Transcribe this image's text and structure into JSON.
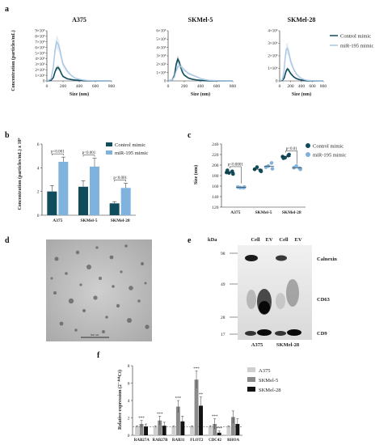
{
  "panel_letters": {
    "a": "a",
    "b": "b",
    "c": "c",
    "d": "d",
    "e": "e",
    "f": "f"
  },
  "colors": {
    "control": "#0f4c5c",
    "mir": "#7fb2dc",
    "mir_light": "#aac6e4",
    "f_a375": "#cfcfcf",
    "f_skmel5": "#8a8a8a",
    "f_skmel28": "#111111"
  },
  "panel_a": {
    "ylabel": "Concentration (particles/mL)",
    "xlabel": "Size (nm)",
    "legend": [
      "Control mimic",
      "miR-195 mimic"
    ],
    "plots": [
      {
        "title": "A375",
        "yticks": [
          "0",
          "1×10⁶",
          "2×10⁶",
          "3×10⁶",
          "4×10⁶",
          "5×10⁶",
          "6×10⁶",
          "7×10⁶",
          "8×10⁶",
          "9×10⁶"
        ]
      },
      {
        "title": "SKMel-5",
        "yticks": [
          "0",
          "1×10⁶",
          "2×10⁶",
          "3×10⁶",
          "4×10⁶",
          "5×10⁶",
          "6×10⁶"
        ]
      },
      {
        "title": "SKMel-28",
        "yticks": [
          "0",
          "1×10⁶",
          "2×10⁶",
          "3×10⁶",
          "4×10⁶"
        ]
      }
    ],
    "xticks": [
      "0",
      "200",
      "400",
      "600",
      "800"
    ]
  },
  "panel_b": {
    "ylabel": "Concentration (particles/mL) x 10⁹",
    "legend": [
      "Control mimic",
      "miR-195 mimic"
    ],
    "yticks": [
      "0",
      "2",
      "4",
      "6"
    ],
    "pvals": [
      "p<0.001",
      "p<0.001",
      "p<0.001"
    ]
  },
  "panel_c": {
    "ylabel": "Size (nm)",
    "legend": [
      "Control mimic",
      "miR-195 mimic"
    ],
    "yticks": [
      "120",
      "140",
      "160",
      "180",
      "200",
      "220",
      "240"
    ],
    "pvals": [
      "p<0.0001",
      "p<0.01"
    ]
  },
  "panel_d": {
    "scale_label": "500 nm"
  },
  "panel_e": {
    "kda": "kDa",
    "lanes": [
      "Cell",
      "EV",
      "Cell",
      "EV"
    ],
    "markers": [
      "98",
      "49",
      "28",
      "17"
    ],
    "bands": [
      "Calnexin",
      "CD63",
      "CD9"
    ],
    "groups": [
      "A375",
      "SKMel-28"
    ]
  },
  "panel_f": {
    "ylabel": "Relative expression (2⁻ᐞᐞCt)",
    "legend": [
      "A375",
      "SKMel-5",
      "SKMel-28"
    ],
    "yticks": [
      "0",
      "2",
      "4",
      "6",
      "8"
    ],
    "sig": [
      "***",
      "***",
      "***",
      "**",
      "***",
      "***",
      "***"
    ]
  },
  "chart_data": [
    {
      "type": "line",
      "title": "A375",
      "xlabel": "Size (nm)",
      "ylabel": "Concentration (particles/mL)",
      "xlim": [
        0,
        800
      ],
      "ylim": [
        0,
        9000000
      ],
      "x": [
        0,
        50,
        80,
        100,
        120,
        140,
        160,
        180,
        200,
        250,
        300,
        350,
        400,
        450,
        500,
        600,
        700,
        800
      ],
      "series": [
        {
          "name": "Control mimic",
          "values": [
            0,
            100000,
            600000,
            1600000,
            2300000,
            2400000,
            2000000,
            1300000,
            800000,
            400000,
            250000,
            150000,
            80000,
            40000,
            20000,
            10000,
            0,
            0
          ]
        },
        {
          "name": "miR-195 mimic",
          "values": [
            0,
            300000,
            2500000,
            5500000,
            7000000,
            6600000,
            5600000,
            4200000,
            3000000,
            1800000,
            1000000,
            500000,
            300000,
            150000,
            80000,
            30000,
            10000,
            0
          ]
        }
      ]
    },
    {
      "type": "line",
      "title": "SKMel-5",
      "xlabel": "Size (nm)",
      "ylabel": "Concentration (particles/mL)",
      "xlim": [
        0,
        800
      ],
      "ylim": [
        0,
        6000000
      ],
      "x": [
        0,
        50,
        80,
        100,
        120,
        140,
        160,
        180,
        200,
        250,
        300,
        350,
        400,
        450,
        500,
        600,
        700,
        800
      ],
      "series": [
        {
          "name": "Control mimic",
          "values": [
            0,
            100000,
            700000,
            2000000,
            2600000,
            2200000,
            1500000,
            1000000,
            700000,
            350000,
            200000,
            120000,
            70000,
            30000,
            15000,
            5000,
            0,
            0
          ]
        },
        {
          "name": "miR-195 mimic",
          "values": [
            0,
            100000,
            500000,
            1200000,
            1700000,
            1800000,
            1700000,
            1500000,
            1300000,
            900000,
            700000,
            500000,
            300000,
            150000,
            80000,
            30000,
            10000,
            0
          ]
        }
      ]
    },
    {
      "type": "line",
      "title": "SKMel-28",
      "xlabel": "Size (nm)",
      "ylabel": "Concentration (particles/mL)",
      "xlim": [
        0,
        800
      ],
      "ylim": [
        0,
        4000000
      ],
      "x": [
        0,
        50,
        80,
        100,
        120,
        140,
        160,
        180,
        200,
        250,
        300,
        350,
        400,
        450,
        500,
        600,
        700,
        800
      ],
      "series": [
        {
          "name": "Control mimic",
          "values": [
            0,
            50000,
            200000,
            500000,
            800000,
            950000,
            900000,
            750000,
            600000,
            350000,
            200000,
            120000,
            70000,
            30000,
            15000,
            5000,
            0,
            0
          ]
        },
        {
          "name": "miR-195 mimic",
          "values": [
            0,
            100000,
            800000,
            1800000,
            2500000,
            2600000,
            2400000,
            2000000,
            1600000,
            1000000,
            600000,
            350000,
            200000,
            100000,
            50000,
            20000,
            10000,
            0
          ]
        }
      ]
    },
    {
      "type": "bar",
      "categories": [
        "A375",
        "SKMel-5",
        "SKMel-28"
      ],
      "ylabel": "Concentration (particles/mL) x 10⁹",
      "ylim": [
        0,
        6
      ],
      "series": [
        {
          "name": "Control mimic",
          "values": [
            2.0,
            2.4,
            1.0
          ],
          "err": [
            0.5,
            0.5,
            0.15
          ]
        },
        {
          "name": "miR-195 mimic",
          "values": [
            4.5,
            4.1,
            2.3
          ],
          "err": [
            0.4,
            0.7,
            0.4
          ]
        }
      ]
    },
    {
      "type": "scatter",
      "categories": [
        "A375",
        "SKMel-5",
        "SKMel-28"
      ],
      "ylabel": "Size (nm)",
      "ylim": [
        120,
        240
      ],
      "series": [
        {
          "name": "Control mimic",
          "points": [
            [
              186,
              188,
              185,
              183,
              190
            ],
            [
              192,
              190,
              196,
              188
            ],
            [
              216,
              218,
              214,
              220,
              213
            ]
          ],
          "means": [
            186,
            192,
            216
          ]
        },
        {
          "name": "miR-195 mimic",
          "points": [
            [
              158,
              157,
              157,
              158
            ],
            [
              196,
              204,
              198,
              193
            ],
            [
              195,
              194,
              198,
              192
            ]
          ],
          "means": [
            158,
            198,
            195
          ]
        }
      ]
    },
    {
      "type": "bar",
      "categories": [
        "RAB27A",
        "RAB27B",
        "RAB31",
        "FLOT2",
        "CDC42",
        "RHOA"
      ],
      "ylabel": "Relative expression (2⁻ᐞᐞCt)",
      "ylim": [
        0,
        8
      ],
      "series": [
        {
          "name": "A375",
          "values": [
            1.0,
            1.0,
            1.0,
            1.0,
            1.0,
            1.0
          ],
          "err": [
            0.1,
            0.1,
            0.1,
            0.1,
            0.1,
            0.1
          ]
        },
        {
          "name": "SKMel-5",
          "values": [
            1.3,
            1.7,
            3.3,
            6.4,
            1.3,
            2.1
          ],
          "err": [
            0.4,
            0.5,
            0.7,
            1.0,
            0.6,
            0.7
          ]
        },
        {
          "name": "SKMel-28",
          "values": [
            1.0,
            1.1,
            1.6,
            3.4,
            0.3,
            1.3
          ],
          "err": [
            0.3,
            0.4,
            0.6,
            1.0,
            0.2,
            0.6
          ]
        }
      ]
    }
  ]
}
